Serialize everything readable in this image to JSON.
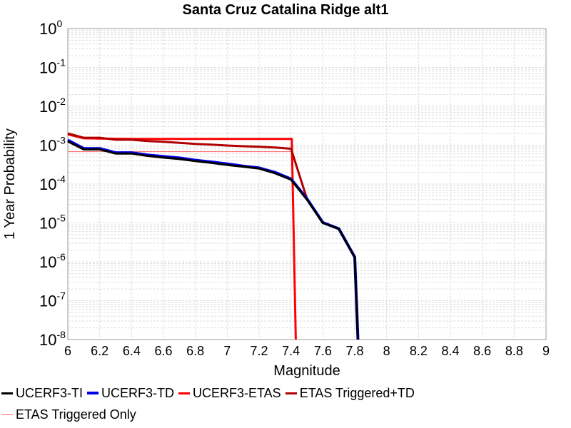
{
  "chart_data": {
    "type": "line",
    "title": "Santa Cruz Catalina Ridge alt1",
    "xlabel": "Magnitude",
    "ylabel": "1 Year Probability",
    "xlim": [
      6,
      9
    ],
    "ylim": [
      1e-08,
      1
    ],
    "yscale": "log",
    "grid": true,
    "legend_position": "bottom",
    "xticks": [
      "6",
      "6.2",
      "6.4",
      "6.6",
      "6.8",
      "7",
      "7.2",
      "7.4",
      "7.6",
      "7.8",
      "8",
      "8.2",
      "8.4",
      "8.6",
      "8.8",
      "9"
    ],
    "yticks": [
      {
        "base": "10",
        "exp": "0"
      },
      {
        "base": "10",
        "exp": "-1"
      },
      {
        "base": "10",
        "exp": "-2"
      },
      {
        "base": "10",
        "exp": "-3"
      },
      {
        "base": "10",
        "exp": "-4"
      },
      {
        "base": "10",
        "exp": "-5"
      },
      {
        "base": "10",
        "exp": "-6"
      },
      {
        "base": "10",
        "exp": "-7"
      },
      {
        "base": "10",
        "exp": "-8"
      }
    ],
    "series": [
      {
        "name": "UCERF3-TI",
        "color": "#000000",
        "x": [
          6.0,
          6.1,
          6.2,
          6.3,
          6.4,
          6.5,
          6.6,
          6.7,
          6.8,
          6.9,
          7.0,
          7.1,
          7.2,
          7.3,
          7.4,
          7.5,
          7.6,
          7.7,
          7.8,
          7.82
        ],
        "y": [
          0.00125,
          0.00078,
          0.00078,
          0.00061,
          0.00061,
          0.00053,
          0.00048,
          0.00044,
          0.00039,
          0.00035,
          0.00031,
          0.00028,
          0.00025,
          0.00019,
          0.00013,
          4e-05,
          1e-05,
          7e-06,
          1.3e-06,
          1e-08
        ]
      },
      {
        "name": "UCERF3-TD",
        "color": "#0000ee",
        "x": [
          6.0,
          6.1,
          6.2,
          6.3,
          6.4,
          6.5,
          6.6,
          6.7,
          6.8,
          6.9,
          7.0,
          7.1,
          7.2,
          7.3,
          7.4,
          7.5,
          7.6,
          7.7,
          7.8,
          7.82
        ],
        "y": [
          0.00135,
          0.00082,
          0.00082,
          0.00064,
          0.00064,
          0.00056,
          0.00051,
          0.00047,
          0.00041,
          0.00037,
          0.00033,
          0.00029,
          0.00026,
          0.0002,
          0.000135,
          4.2e-05,
          1.02e-05,
          7.1e-06,
          1.32e-06,
          1e-08
        ]
      },
      {
        "name": "UCERF3-ETAS",
        "color": "#ff0000",
        "x": [
          6.0,
          6.1,
          6.2,
          6.3,
          6.4,
          6.5,
          6.6,
          6.7,
          6.8,
          6.9,
          7.0,
          7.1,
          7.2,
          7.3,
          7.4,
          7.405,
          7.43
        ],
        "y": [
          0.0019,
          0.0015,
          0.00148,
          0.00146,
          0.00145,
          0.00145,
          0.00145,
          0.00145,
          0.00145,
          0.00145,
          0.00145,
          0.00145,
          0.00145,
          0.00145,
          0.00145,
          0.00145,
          1e-08
        ]
      },
      {
        "name": "ETAS Triggered+TD",
        "color": "#b00000",
        "x": [
          6.0,
          6.1,
          6.2,
          6.3,
          6.4,
          6.5,
          6.6,
          6.7,
          6.8,
          6.9,
          7.0,
          7.1,
          7.2,
          7.3,
          7.4,
          7.5,
          7.6,
          7.7,
          7.8,
          7.82
        ],
        "y": [
          0.002,
          0.00155,
          0.00155,
          0.00138,
          0.00138,
          0.00128,
          0.00122,
          0.00115,
          0.00108,
          0.00103,
          0.00098,
          0.00094,
          0.00091,
          0.00087,
          0.00081,
          4.2e-05,
          1.02e-05,
          7.1e-06,
          1.32e-06,
          1e-08
        ]
      },
      {
        "name": "ETAS Triggered Only",
        "color": "#ff6666",
        "x": [
          6.0,
          7.4
        ],
        "y": [
          0.00068,
          0.00068
        ]
      }
    ]
  }
}
